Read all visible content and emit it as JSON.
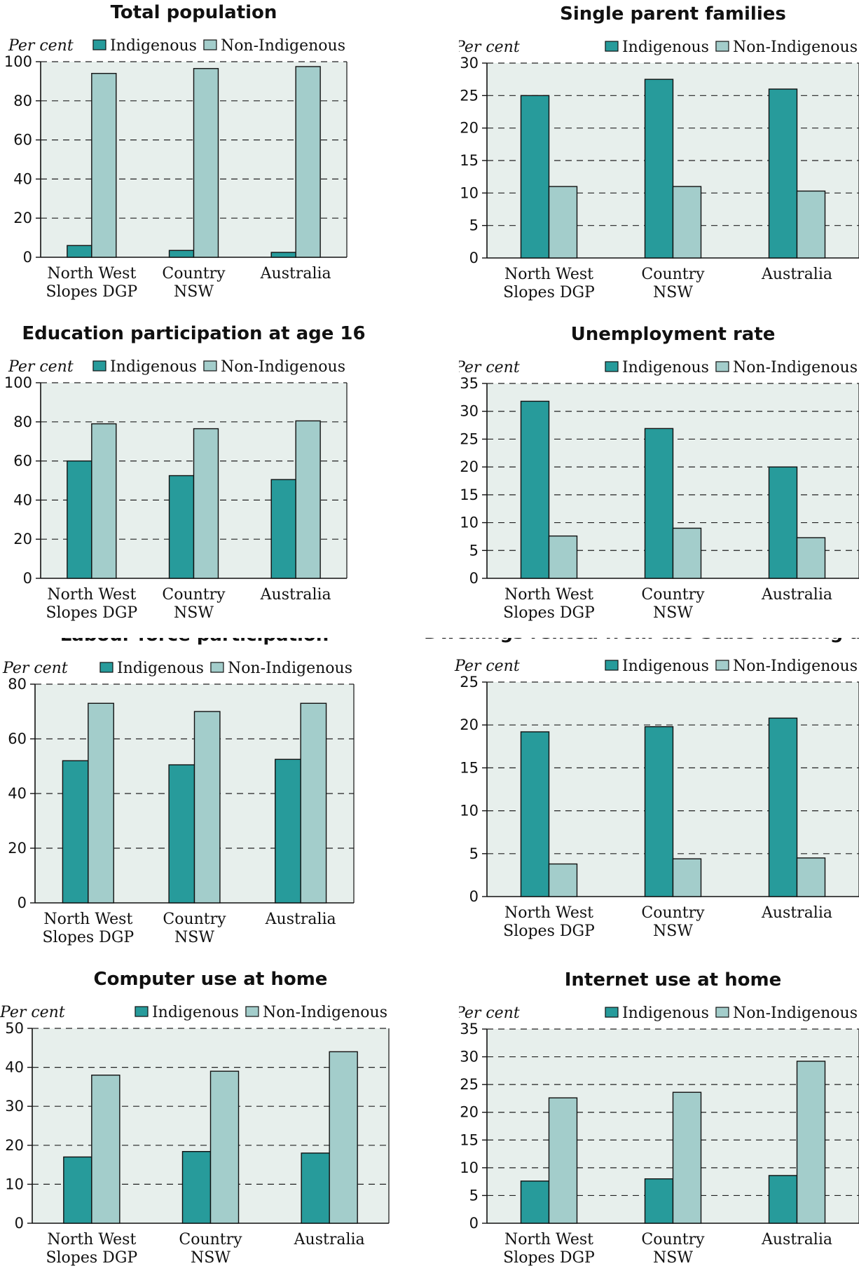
{
  "legend": {
    "indigenous": "Indigenous",
    "non_indigenous": "Non-Indigenous"
  },
  "colors": {
    "indigenous": "#279b9b",
    "non_indigenous": "#a3cdcb",
    "plot_bg": "#e7efec",
    "grid": "#222222"
  },
  "chart_data": [
    {
      "type": "bar",
      "title": "Total population",
      "ylabel": "Per cent",
      "categories": [
        [
          "North West",
          "Slopes DGP"
        ],
        [
          "Country",
          "NSW"
        ],
        [
          "Australia"
        ]
      ],
      "series": [
        {
          "name": "Indigenous",
          "values": [
            6,
            3.5,
            2.5
          ]
        },
        {
          "name": "Non-Indigenous",
          "values": [
            94,
            96.5,
            97.5
          ]
        }
      ],
      "ylim": [
        0,
        100
      ],
      "yticks": [
        0,
        20,
        40,
        60,
        80,
        100
      ],
      "grid": true,
      "legend_position": "top-right"
    },
    {
      "type": "bar",
      "title": "Single parent families",
      "ylabel": "Per cent",
      "categories": [
        [
          "North West",
          "Slopes DGP"
        ],
        [
          "Country",
          "NSW"
        ],
        [
          "Australia"
        ]
      ],
      "series": [
        {
          "name": "Indigenous",
          "values": [
            25,
            27.5,
            26
          ]
        },
        {
          "name": "Non-Indigenous",
          "values": [
            11,
            11,
            10.3
          ]
        }
      ],
      "ylim": [
        0,
        30
      ],
      "yticks": [
        0,
        5,
        10,
        15,
        20,
        25,
        30
      ],
      "grid": true,
      "legend_position": "top-right"
    },
    {
      "type": "bar",
      "title": "Education participation at age 16",
      "ylabel": "Per cent",
      "categories": [
        [
          "North West",
          "Slopes DGP"
        ],
        [
          "Country",
          "NSW"
        ],
        [
          "Australia"
        ]
      ],
      "series": [
        {
          "name": "Indigenous",
          "values": [
            60,
            52.5,
            50.5
          ]
        },
        {
          "name": "Non-Indigenous",
          "values": [
            79,
            76.5,
            80.5
          ]
        }
      ],
      "ylim": [
        0,
        100
      ],
      "yticks": [
        0,
        20,
        40,
        60,
        80,
        100
      ],
      "grid": true,
      "legend_position": "top-right"
    },
    {
      "type": "bar",
      "title": "Unemployment rate",
      "ylabel": "Per cent",
      "categories": [
        [
          "North West",
          "Slopes DGP"
        ],
        [
          "Country",
          "NSW"
        ],
        [
          "Australia"
        ]
      ],
      "series": [
        {
          "name": "Indigenous",
          "values": [
            31.8,
            26.9,
            20
          ]
        },
        {
          "name": "Non-Indigenous",
          "values": [
            7.6,
            9,
            7.3
          ]
        }
      ],
      "ylim": [
        0,
        35
      ],
      "yticks": [
        0,
        5,
        10,
        15,
        20,
        25,
        30,
        35
      ],
      "grid": true,
      "legend_position": "top-right"
    },
    {
      "type": "bar",
      "title": "Labour force participation",
      "ylabel": "Per cent",
      "categories": [
        [
          "North West",
          "Slopes DGP"
        ],
        [
          "Country",
          "NSW"
        ],
        [
          "Australia"
        ]
      ],
      "series": [
        {
          "name": "Indigenous",
          "values": [
            52,
            50.5,
            52.5
          ]
        },
        {
          "name": "Non-Indigenous",
          "values": [
            73,
            70,
            73
          ]
        }
      ],
      "ylim": [
        0,
        80
      ],
      "yticks": [
        0,
        20,
        40,
        60,
        80
      ],
      "grid": true,
      "legend_position": "top-right"
    },
    {
      "type": "bar",
      "title": "Dwellings rented from the State housing autho",
      "ylabel": "Per cent",
      "categories": [
        [
          "North West",
          "Slopes DGP"
        ],
        [
          "Country",
          "NSW"
        ],
        [
          "Australia"
        ]
      ],
      "series": [
        {
          "name": "Indigenous",
          "values": [
            19.2,
            19.8,
            20.8
          ]
        },
        {
          "name": "Non-Indigenous",
          "values": [
            3.8,
            4.4,
            4.5
          ]
        }
      ],
      "ylim": [
        0,
        25
      ],
      "yticks": [
        0,
        5,
        10,
        15,
        20,
        25
      ],
      "grid": true,
      "legend_position": "top-right"
    },
    {
      "type": "bar",
      "title": "Computer use at home",
      "ylabel": "Per cent",
      "categories": [
        [
          "North West",
          "Slopes DGP"
        ],
        [
          "Country",
          "NSW"
        ],
        [
          "Australia"
        ]
      ],
      "series": [
        {
          "name": "Indigenous",
          "values": [
            17,
            18.4,
            18
          ]
        },
        {
          "name": "Non-Indigenous",
          "values": [
            38,
            39,
            44
          ]
        }
      ],
      "ylim": [
        0,
        50
      ],
      "yticks": [
        0,
        10,
        20,
        30,
        40,
        50
      ],
      "grid": true,
      "legend_position": "top-right"
    },
    {
      "type": "bar",
      "title": "Internet use at home",
      "ylabel": "Per cent",
      "categories": [
        [
          "North West",
          "Slopes DGP"
        ],
        [
          "Country",
          "NSW"
        ],
        [
          "Australia"
        ]
      ],
      "series": [
        {
          "name": "Indigenous",
          "values": [
            7.6,
            8,
            8.6
          ]
        },
        {
          "name": "Non-Indigenous",
          "values": [
            22.6,
            23.6,
            29.2
          ]
        }
      ],
      "ylim": [
        0,
        35
      ],
      "yticks": [
        0,
        5,
        10,
        15,
        20,
        25,
        30,
        35
      ],
      "grid": true,
      "legend_position": "top-right"
    }
  ]
}
